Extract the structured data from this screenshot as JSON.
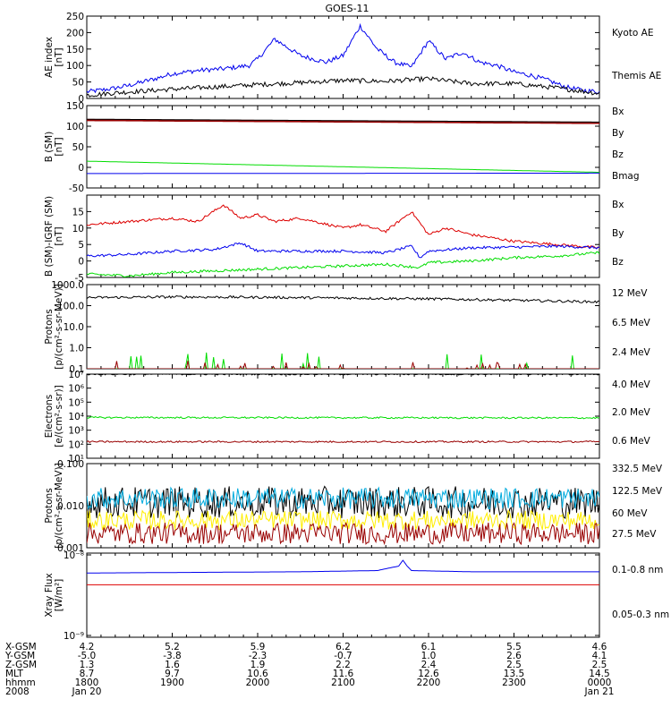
{
  "title": "GOES-11",
  "colors": {
    "black": "#000000",
    "blue": "#0000ee",
    "green": "#00dd00",
    "red": "#dd0000",
    "darkred": "#990000",
    "yellow": "#ffee00",
    "cyan": "#00aadd"
  },
  "chart_data": [
    {
      "id": "ae",
      "type": "line",
      "ylabel": "AE index [nT]",
      "ylim": [
        0,
        250
      ],
      "yticks": [
        "0",
        "50",
        "100",
        "150",
        "200",
        "250"
      ],
      "legend": [
        "Kyoto AE",
        "Themis AE"
      ],
      "series": [
        {
          "name": "Kyoto AE",
          "color": "#0000ee",
          "x": [
            0,
            0.3,
            0.5,
            0.8,
            1,
            1.3,
            1.6,
            1.9,
            2,
            2.2,
            2.5,
            2.8,
            3,
            3.2,
            3.4,
            3.6,
            3.8,
            4,
            4.2,
            4.4,
            4.6,
            4.8,
            5,
            5.2,
            5.4,
            5.6,
            5.8,
            6
          ],
          "y": [
            20,
            30,
            40,
            60,
            75,
            85,
            90,
            100,
            120,
            180,
            130,
            110,
            130,
            220,
            150,
            110,
            95,
            175,
            120,
            140,
            110,
            100,
            80,
            70,
            55,
            35,
            25,
            20
          ]
        },
        {
          "name": "Themis AE",
          "color": "#000000",
          "x": [
            0,
            0.5,
            1,
            1.5,
            2,
            2.5,
            3,
            3.5,
            4,
            4.5,
            5,
            5.5,
            6
          ],
          "y": [
            10,
            20,
            28,
            35,
            42,
            48,
            55,
            52,
            60,
            45,
            45,
            32,
            15
          ]
        }
      ]
    },
    {
      "id": "bfield",
      "type": "line",
      "ylabel": "B (SM) [nT]",
      "ylim": [
        -50,
        150
      ],
      "yticks": [
        "-50",
        "0",
        "50",
        "100",
        "150"
      ],
      "legend": [
        "Bx",
        "By",
        "Bz",
        "Bmag"
      ],
      "series": [
        {
          "name": "Bz",
          "color": "#990000",
          "x": [
            0,
            6
          ],
          "y": [
            115,
            108
          ]
        },
        {
          "name": "Bmag",
          "color": "#000000",
          "x": [
            0,
            6
          ],
          "y": [
            117,
            110
          ]
        },
        {
          "name": "By",
          "color": "#00dd00",
          "x": [
            0,
            6
          ],
          "y": [
            15,
            -12
          ]
        },
        {
          "name": "Bx",
          "color": "#0000ee",
          "x": [
            0,
            6
          ],
          "y": [
            -15,
            -14
          ]
        }
      ]
    },
    {
      "id": "bdiff",
      "type": "line",
      "ylabel": "B (SM)-IGRF (SM) [nT]",
      "ylim": [
        -5,
        20
      ],
      "yticks": [
        "-5",
        "0",
        "5",
        "10",
        "15"
      ],
      "legend": [
        "Bx",
        "By",
        "Bz"
      ],
      "series": [
        {
          "name": "Bz",
          "color": "#dd0000",
          "x": [
            0,
            0.5,
            1,
            1.3,
            1.6,
            1.8,
            2,
            2.2,
            2.5,
            3,
            3.2,
            3.5,
            3.8,
            4,
            4.2,
            4.5,
            5,
            5.5,
            6
          ],
          "y": [
            11,
            12,
            13,
            12,
            17,
            13,
            14,
            12,
            13,
            10,
            11,
            9,
            15,
            8,
            10,
            8,
            6,
            5,
            4
          ]
        },
        {
          "name": "Bx",
          "color": "#0000ee",
          "x": [
            0,
            0.5,
            1,
            1.5,
            1.8,
            2,
            2.5,
            3,
            3.5,
            3.8,
            3.9,
            4,
            4.5,
            5,
            5.5,
            6
          ],
          "y": [
            1.5,
            2,
            3,
            3.5,
            5.5,
            3,
            3,
            3,
            2.5,
            4.5,
            1,
            3,
            4,
            4.2,
            4.5,
            4
          ]
        },
        {
          "name": "By",
          "color": "#00dd00",
          "x": [
            0,
            0.5,
            1,
            1.5,
            2,
            2.5,
            3,
            3.5,
            3.9,
            4,
            4.5,
            5,
            5.5,
            6
          ],
          "y": [
            -4,
            -4.5,
            -3.5,
            -3,
            -2.5,
            -2,
            -1.5,
            -1,
            -2,
            -0.5,
            0,
            1,
            1.5,
            2.5
          ]
        }
      ]
    },
    {
      "id": "protons_low",
      "type": "line",
      "ylabel": "Protons [p/(cm²-s-sr-MeV)]",
      "yscale": "log",
      "ylim": [
        0.1,
        1000
      ],
      "yticks": [
        "0.1",
        "1.0",
        "10.0",
        "100.0",
        "1000.0"
      ],
      "legend": [
        "12 MeV",
        "6.5 MeV",
        "2.4 MeV"
      ],
      "series": [
        {
          "name": "2.4 MeV",
          "color": "#000000",
          "x": [
            0,
            1,
            2,
            3,
            4,
            5,
            6
          ],
          "y": [
            240,
            260,
            250,
            230,
            210,
            180,
            150
          ]
        },
        {
          "name": "6.5 MeV",
          "color": "#00dd00",
          "note_on_chart": "spiky near floor",
          "y_range": [
            0.1,
            0.6
          ]
        },
        {
          "name": "12 MeV",
          "color": "#990000",
          "note_on_chart": "spiky near floor",
          "y_range": [
            0.1,
            0.25
          ]
        }
      ]
    },
    {
      "id": "electrons",
      "type": "line",
      "ylabel": "Electrons [e/(cm²-s-sr)]",
      "yscale": "log",
      "ylim": [
        10,
        10000000
      ],
      "yticks": [
        "10¹",
        "10²",
        "10³",
        "10⁴",
        "10⁵",
        "10⁶",
        "10⁷"
      ],
      "legend": [
        "4.0 MeV",
        "2.0 MeV",
        "0.6 MeV"
      ],
      "series": [
        {
          "name": "0.6 MeV",
          "color": "#000000",
          "x": [
            0,
            6
          ],
          "y": [
            10000000,
            10000000
          ]
        },
        {
          "name": "2.0 MeV",
          "color": "#00dd00",
          "x": [
            0,
            6
          ],
          "y": [
            8000,
            7500
          ]
        },
        {
          "name": "4.0 MeV",
          "color": "#990000",
          "x": [
            0,
            6
          ],
          "y": [
            150,
            150
          ]
        }
      ]
    },
    {
      "id": "protons_high",
      "type": "line",
      "ylabel": "Protons [p/(cm²-s-sr-MeV)]",
      "yscale": "log",
      "ylim": [
        0.001,
        0.1
      ],
      "yticks": [
        "0.001",
        "0.010",
        "0.100"
      ],
      "legend": [
        "332.5 MeV",
        "122.5 MeV",
        "60 MeV",
        "27.5 MeV"
      ],
      "series": [
        {
          "name": "27.5 MeV",
          "color": "#000000",
          "level": 0.012,
          "spread": 2.4
        },
        {
          "name": "60 MeV",
          "color": "#00aadd",
          "level": 0.015,
          "spread": 1.8
        },
        {
          "name": "122.5 MeV",
          "color": "#ffee00",
          "level": 0.0045,
          "spread": 1.7
        },
        {
          "name": "332.5 MeV",
          "color": "#990000",
          "level": 0.0022,
          "spread": 1.8
        }
      ]
    },
    {
      "id": "xray",
      "type": "line",
      "ylabel": "Xray Flux [W/m²]",
      "yscale": "log",
      "ylim": [
        1e-09,
        1e-08
      ],
      "yticks": [
        "10⁻⁹",
        "10⁻⁸"
      ],
      "legend": [
        "0.1-0.8 nm",
        "0.05-0.3 nm"
      ],
      "series": [
        {
          "name": "0.1-0.8 nm",
          "color": "#0000ee",
          "x": [
            0,
            2.5,
            3.4,
            3.65,
            3.7,
            3.75,
            3.8,
            4.5,
            6
          ],
          "y": [
            5.8e-09,
            6e-09,
            6.2e-09,
            7e-09,
            8.2e-09,
            7e-09,
            6.2e-09,
            6e-09,
            6e-09
          ]
        },
        {
          "name": "0.05-0.3 nm",
          "color": "#dd0000",
          "x": [
            0,
            6
          ],
          "y": [
            4.2e-09,
            4.2e-09
          ]
        }
      ]
    }
  ],
  "x_axis": {
    "labels": [
      "X-GSM",
      "Y-GSM",
      "Z-GSM",
      "MLT",
      "hhmm",
      "2008"
    ],
    "columns": [
      [
        "4.2",
        "-5.0",
        "1.3",
        "8.7",
        "1800",
        "Jan 20"
      ],
      [
        "5.2",
        "-3.8",
        "1.6",
        "9.7",
        "1900",
        ""
      ],
      [
        "5.9",
        "-2.3",
        "1.9",
        "10.6",
        "2000",
        ""
      ],
      [
        "6.2",
        "-0.7",
        "2.2",
        "11.6",
        "2100",
        ""
      ],
      [
        "6.1",
        "1.0",
        "2.4",
        "12.6",
        "2200",
        ""
      ],
      [
        "5.5",
        "2.6",
        "2.5",
        "13.5",
        "2300",
        ""
      ],
      [
        "4.6",
        "4.1",
        "2.5",
        "14.5",
        "0000",
        "Jan 21"
      ]
    ]
  }
}
